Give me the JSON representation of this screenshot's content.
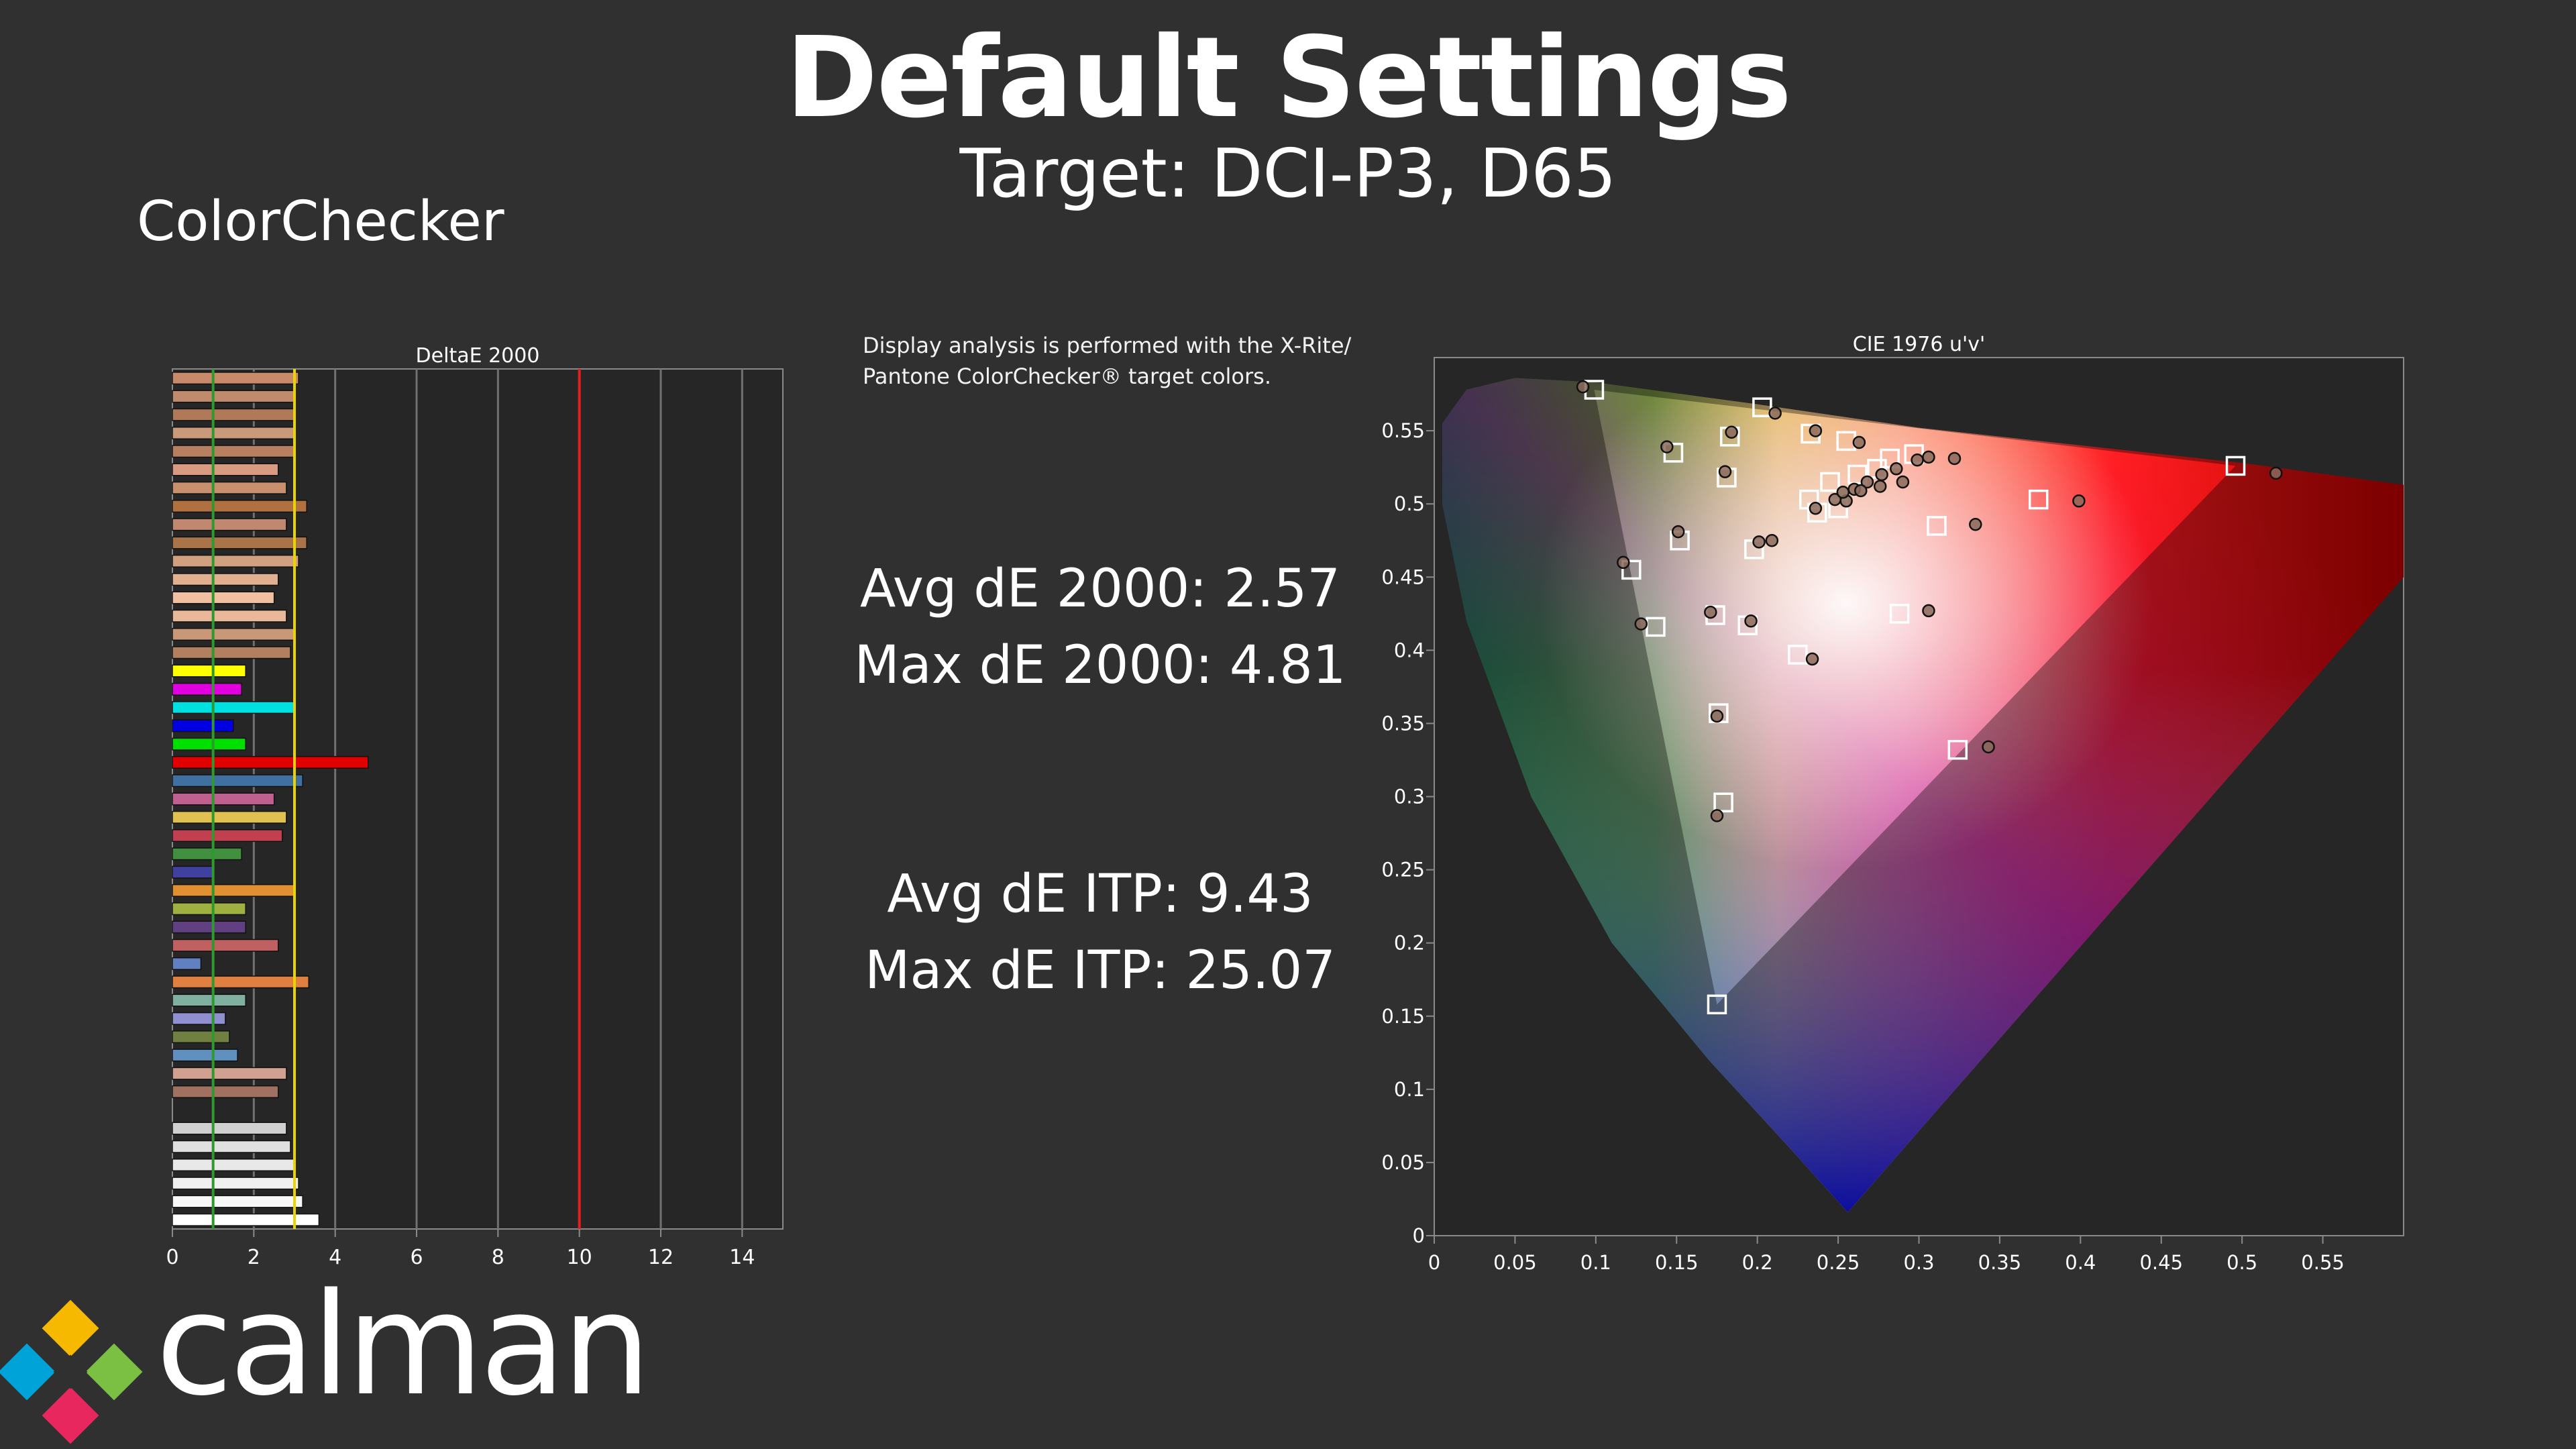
{
  "title": "Default Settings",
  "subtitle": "Target: DCI-P3, D65",
  "section": "ColorChecker",
  "note": "Display analysis is performed with the X-Rite/ Pantone ColorChecker® target colors.",
  "stats": {
    "avg_de2000": "Avg dE 2000: 2.57",
    "max_de2000": "Max dE 2000: 4.81",
    "avg_itp": "Avg dE ITP: 9.43",
    "max_itp": "Max dE ITP: 25.07"
  },
  "logo_text": "calman",
  "chart_data": [
    {
      "type": "bar",
      "orientation": "horizontal",
      "title": "DeltaE 2000",
      "xlim": [
        0,
        15
      ],
      "xticks": [
        "0",
        "2",
        "4",
        "6",
        "8",
        "10",
        "12",
        "14"
      ],
      "reference_lines": [
        {
          "value": 1,
          "color": "#2e9a2e"
        },
        {
          "value": 3,
          "color": "#e8d400"
        },
        {
          "value": 10,
          "color": "#e02020"
        }
      ],
      "values": [
        3.1,
        3.0,
        3.0,
        3.0,
        3.0,
        2.6,
        2.8,
        3.3,
        2.8,
        3.3,
        3.1,
        2.6,
        2.5,
        2.8,
        3.0,
        2.9,
        1.8,
        1.7,
        3.0,
        1.5,
        1.8,
        4.81,
        3.2,
        2.5,
        2.8,
        2.7,
        1.7,
        1.0,
        3.0,
        1.8,
        1.8,
        2.6,
        0.7,
        3.35,
        1.8,
        1.3,
        1.4,
        1.6,
        2.8,
        2.6,
        0.0,
        2.8,
        2.9,
        3.0,
        3.1,
        3.2,
        3.6
      ],
      "colors": [
        "#c88a6a",
        "#c08a6c",
        "#b07a58",
        "#c89a7a",
        "#b88060",
        "#d89a80",
        "#c8906c",
        "#b07040",
        "#c08870",
        "#a87448",
        "#d0a080",
        "#e0b090",
        "#f0c0a0",
        "#e8b898",
        "#c89878",
        "#b08060",
        "#ffff00",
        "#e000e0",
        "#00e0e0",
        "#0000e0",
        "#00e000",
        "#e00000",
        "#4070a0",
        "#c06090",
        "#e0c050",
        "#c04050",
        "#409040",
        "#4040a0",
        "#e09030",
        "#a0b040",
        "#604080",
        "#c06060",
        "#6080c0",
        "#e08040",
        "#80b0a0",
        "#9090d0",
        "#708040",
        "#6090c0",
        "#d0a090",
        "#a07060",
        "#303030",
        "#d0d0d0",
        "#e0e0e0",
        "#e8e8e8",
        "#f0f0f0",
        "#f8f8f8",
        "#ffffff"
      ]
    },
    {
      "type": "scatter",
      "title": "CIE 1976 u'v'",
      "xlim": [
        0,
        0.6
      ],
      "ylim": [
        0,
        0.6
      ],
      "xticks": [
        "0",
        "0.05",
        "0.1",
        "0.15",
        "0.2",
        "0.25",
        "0.3",
        "0.35",
        "0.4",
        "0.45",
        "0.5",
        "0.55"
      ],
      "yticks": [
        "0",
        "0.05",
        "0.1",
        "0.15",
        "0.2",
        "0.25",
        "0.3",
        "0.35",
        "0.4",
        "0.45",
        "0.5",
        "0.55"
      ],
      "gamut_triangle": [
        [
          0.496,
          0.526
        ],
        [
          0.099,
          0.578
        ],
        [
          0.175,
          0.158
        ]
      ],
      "targets": [
        [
          0.099,
          0.578
        ],
        [
          0.203,
          0.566
        ],
        [
          0.233,
          0.548
        ],
        [
          0.255,
          0.543
        ],
        [
          0.297,
          0.534
        ],
        [
          0.374,
          0.503
        ],
        [
          0.496,
          0.526
        ],
        [
          0.311,
          0.485
        ],
        [
          0.148,
          0.535
        ],
        [
          0.183,
          0.546
        ],
        [
          0.181,
          0.518
        ],
        [
          0.152,
          0.475
        ],
        [
          0.122,
          0.455
        ],
        [
          0.137,
          0.416
        ],
        [
          0.174,
          0.424
        ],
        [
          0.194,
          0.417
        ],
        [
          0.198,
          0.469
        ],
        [
          0.176,
          0.357
        ],
        [
          0.179,
          0.296
        ],
        [
          0.175,
          0.158
        ],
        [
          0.225,
          0.397
        ],
        [
          0.288,
          0.425
        ],
        [
          0.324,
          0.332
        ],
        [
          0.232,
          0.503
        ],
        [
          0.245,
          0.515
        ],
        [
          0.262,
          0.52
        ],
        [
          0.274,
          0.524
        ],
        [
          0.282,
          0.531
        ],
        [
          0.237,
          0.494
        ],
        [
          0.25,
          0.497
        ]
      ],
      "measured": [
        [
          0.092,
          0.58
        ],
        [
          0.211,
          0.562
        ],
        [
          0.236,
          0.55
        ],
        [
          0.263,
          0.542
        ],
        [
          0.299,
          0.53
        ],
        [
          0.306,
          0.532
        ],
        [
          0.322,
          0.531
        ],
        [
          0.399,
          0.502
        ],
        [
          0.521,
          0.521
        ],
        [
          0.335,
          0.486
        ],
        [
          0.144,
          0.539
        ],
        [
          0.184,
          0.549
        ],
        [
          0.18,
          0.522
        ],
        [
          0.151,
          0.481
        ],
        [
          0.117,
          0.46
        ],
        [
          0.128,
          0.418
        ],
        [
          0.171,
          0.426
        ],
        [
          0.196,
          0.42
        ],
        [
          0.201,
          0.474
        ],
        [
          0.209,
          0.475
        ],
        [
          0.175,
          0.355
        ],
        [
          0.175,
          0.287
        ],
        [
          0.234,
          0.394
        ],
        [
          0.306,
          0.427
        ],
        [
          0.343,
          0.334
        ],
        [
          0.255,
          0.502
        ],
        [
          0.26,
          0.51
        ],
        [
          0.268,
          0.515
        ],
        [
          0.277,
          0.52
        ],
        [
          0.286,
          0.524
        ],
        [
          0.236,
          0.497
        ],
        [
          0.248,
          0.503
        ],
        [
          0.264,
          0.509
        ],
        [
          0.276,
          0.512
        ],
        [
          0.29,
          0.515
        ],
        [
          0.253,
          0.508
        ]
      ]
    }
  ]
}
